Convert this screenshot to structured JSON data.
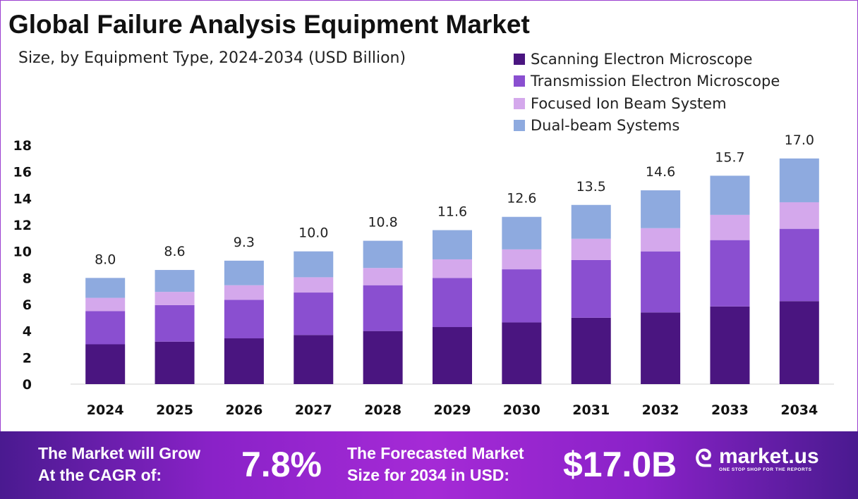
{
  "chart_data": {
    "type": "bar",
    "stacked": true,
    "title": "Global Failure Analysis Equipment Market",
    "subtitle": "Size, by Equipment Type, 2024-2034 (USD Billion)",
    "categories": [
      "2024",
      "2025",
      "2026",
      "2027",
      "2028",
      "2029",
      "2030",
      "2031",
      "2032",
      "2033",
      "2034"
    ],
    "series": [
      {
        "name": "Scanning Electron Microscope",
        "color": "#4a1580",
        "values": [
          3.0,
          3.2,
          3.45,
          3.7,
          4.0,
          4.3,
          4.65,
          5.0,
          5.4,
          5.85,
          6.25
        ]
      },
      {
        "name": "Transmission Electron Microscope",
        "color": "#8a4fd0",
        "values": [
          2.5,
          2.75,
          2.9,
          3.2,
          3.45,
          3.7,
          4.0,
          4.35,
          4.6,
          5.0,
          5.45
        ]
      },
      {
        "name": "Focused Ion Beam System",
        "color": "#d4a8ec",
        "values": [
          1.0,
          1.0,
          1.1,
          1.15,
          1.3,
          1.4,
          1.5,
          1.6,
          1.75,
          1.9,
          2.0
        ]
      },
      {
        "name": "Dual-beam Systems",
        "color": "#8eaadf",
        "values": [
          1.5,
          1.65,
          1.85,
          1.95,
          2.05,
          2.2,
          2.45,
          2.55,
          2.85,
          2.95,
          3.3
        ]
      }
    ],
    "totals": [
      "8.0",
      "8.6",
      "9.3",
      "10.0",
      "10.8",
      "11.6",
      "12.6",
      "13.5",
      "14.6",
      "15.7",
      "17.0"
    ],
    "ylim": [
      0,
      18
    ],
    "yticks": [
      "0",
      "2",
      "4",
      "6",
      "8",
      "10",
      "12",
      "14",
      "16",
      "18"
    ],
    "grid": false,
    "legend_position": "top-right"
  },
  "banner": {
    "cagr_label_1": "The Market will Grow",
    "cagr_label_2": "At the CAGR of:",
    "cagr_value": "7.8%",
    "forecast_label_1": "The Forecasted Market",
    "forecast_label_2": "Size for 2034 in USD:",
    "forecast_value": "$17.0B",
    "logo_name": "market.us",
    "logo_tagline": "ONE STOP SHOP FOR THE REPORTS"
  }
}
